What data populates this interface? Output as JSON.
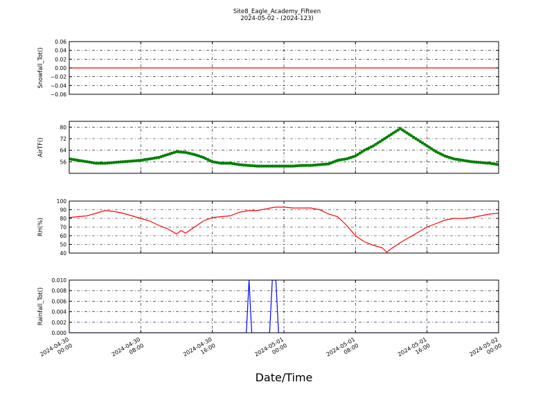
{
  "figure": {
    "title_line1": "Site8_Eagle_Academy_Fifteen",
    "title_line2": "2024-05-02 - (2024-123)",
    "xlabel": "Date/Time"
  },
  "x_ticks": [
    {
      "line1": "2024-04-30",
      "line2": "00:00"
    },
    {
      "line1": "2024-04-30",
      "line2": "08:00"
    },
    {
      "line1": "2024-04-30",
      "line2": "16:00"
    },
    {
      "line1": "2024-05-01",
      "line2": "00:00"
    },
    {
      "line1": "2024-05-01",
      "line2": "08:00"
    },
    {
      "line1": "2024-05-01",
      "line2": "16:00"
    },
    {
      "line1": "2024-05-02",
      "line2": "00:00"
    }
  ],
  "colors": {
    "snowfall": "#ff0000",
    "airtemp": "#008000",
    "rh": "#ff0000",
    "rainfall": "#0000ff",
    "grid": "#000000"
  },
  "chart_data": [
    {
      "type": "line",
      "ylabel": "Snowfall_Tot()",
      "x_unit": "hours since 2024-04-30 00:00",
      "xlim": [
        0,
        48
      ],
      "ylim": [
        -0.06,
        0.06
      ],
      "yticks": [
        0.06,
        0.04,
        0.02,
        0.0,
        -0.02,
        -0.04,
        -0.06
      ],
      "ytick_labels": [
        "0.06",
        "0.04",
        "0.02",
        "0.00",
        "−0.02",
        "−0.04",
        "−0.06"
      ],
      "grid": true,
      "series": [
        {
          "x": [
            0,
            48
          ],
          "y": [
            0.0,
            0.0
          ]
        }
      ]
    },
    {
      "type": "line",
      "ylabel": "AirTF()",
      "x_unit": "hours since 2024-04-30 00:00",
      "xlim": [
        0,
        48
      ],
      "ylim": [
        48,
        84
      ],
      "yticks": [
        80,
        72,
        64,
        56
      ],
      "ytick_labels": [
        "80",
        "72",
        "64",
        "56"
      ],
      "grid": true,
      "markers": true,
      "series": [
        {
          "x": [
            0,
            1,
            2,
            3,
            4,
            5,
            6,
            7,
            8,
            9,
            10,
            11,
            12,
            13,
            14,
            15,
            16,
            17,
            18,
            19,
            20,
            21,
            22,
            23,
            24,
            25,
            26,
            27,
            28,
            29,
            30,
            31,
            32,
            33,
            34,
            35,
            35.5,
            36,
            37,
            38,
            39,
            40,
            41,
            42,
            43,
            44,
            45,
            46,
            47,
            48
          ],
          "y": [
            58,
            57,
            56,
            55,
            55,
            55.5,
            56,
            56.5,
            57,
            58,
            59,
            61,
            63,
            62.5,
            61,
            59,
            56,
            55,
            55,
            54,
            53.5,
            53,
            53,
            53,
            53,
            53,
            53.5,
            53.5,
            54,
            54.5,
            57,
            58,
            60,
            64,
            67,
            71,
            73,
            75,
            79,
            75,
            71,
            67,
            63,
            60,
            58,
            57,
            56,
            55.5,
            55,
            54
          ]
        }
      ]
    },
    {
      "type": "line",
      "ylabel": "RH(%)",
      "x_unit": "hours since 2024-04-30 00:00",
      "xlim": [
        0,
        48
      ],
      "ylim": [
        40,
        100
      ],
      "yticks": [
        100,
        90,
        80,
        70,
        60,
        50,
        40
      ],
      "ytick_labels": [
        "100",
        "90",
        "80",
        "70",
        "60",
        "50",
        "40"
      ],
      "grid": true,
      "series": [
        {
          "x": [
            0,
            1,
            2,
            3,
            4,
            5,
            6,
            7,
            8,
            9,
            10,
            11,
            12,
            12.5,
            13,
            14,
            15,
            16,
            17,
            18,
            19,
            20,
            21,
            22,
            23,
            24,
            25,
            26,
            27,
            28,
            29,
            30,
            31,
            32,
            33,
            34,
            35,
            35.5,
            36,
            37,
            38,
            39,
            40,
            41,
            42,
            43,
            44,
            45,
            46,
            47,
            48
          ],
          "y": [
            81,
            82,
            83,
            86,
            89,
            88,
            86,
            83,
            80,
            77,
            72,
            68,
            62,
            66,
            63,
            70,
            77,
            81,
            82,
            83,
            87,
            89,
            89,
            91,
            93,
            93,
            92,
            92,
            92,
            90,
            85,
            82,
            72,
            60,
            53,
            49,
            46,
            41,
            45,
            52,
            58,
            64,
            70,
            74,
            78,
            80,
            80,
            81,
            83,
            85,
            86
          ]
        }
      ]
    },
    {
      "type": "line",
      "ylabel": "Rainfall_Tot()",
      "x_unit": "hours since 2024-04-30 00:00",
      "xlim": [
        0,
        48
      ],
      "ylim": [
        0,
        0.01
      ],
      "yticks": [
        0.01,
        0.008,
        0.006,
        0.004,
        0.002,
        0.0
      ],
      "ytick_labels": [
        "0.010",
        "0.008",
        "0.006",
        "0.004",
        "0.002",
        "0.000"
      ],
      "grid": true,
      "series": [
        {
          "x": [
            0,
            19.8,
            20.1,
            20.4,
            22.4,
            22.7,
            23.1,
            23.4,
            48
          ],
          "y": [
            0,
            0,
            0.01,
            0,
            0,
            0.01,
            0.01,
            0,
            0
          ]
        }
      ]
    }
  ]
}
